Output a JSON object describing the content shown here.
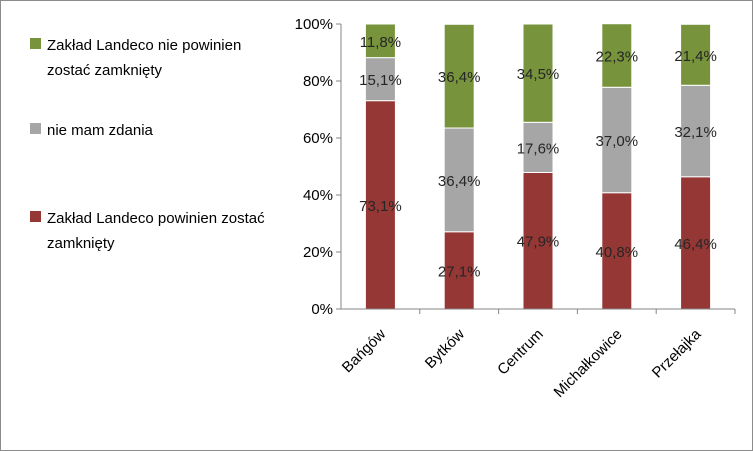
{
  "chart_data": {
    "type": "bar",
    "stacked": true,
    "percent_stacked": true,
    "categories": [
      "Bańgów",
      "Bytków",
      "Centrum",
      "Michałkowice",
      "Przełajka"
    ],
    "series": [
      {
        "name": "Zakład Landeco powinien zostać zamknięty",
        "color": "#953735",
        "values": [
          73.1,
          27.1,
          47.9,
          40.8,
          46.4
        ],
        "labels": [
          "73,1%",
          "27,1%",
          "47,9%",
          "40,8%",
          "46,4%"
        ]
      },
      {
        "name": "nie mam zdania",
        "color": "#a6a6a6",
        "values": [
          15.1,
          36.4,
          17.6,
          37.0,
          32.1
        ],
        "labels": [
          "15,1%",
          "36,4%",
          "17,6%",
          "37,0%",
          "32,1%"
        ]
      },
      {
        "name": "Zakład Landeco nie powinien zostać zamknięty",
        "color": "#77933c",
        "values": [
          11.8,
          36.4,
          34.5,
          22.3,
          21.4
        ],
        "labels": [
          "11,8%",
          "36,4%",
          "34,5%",
          "22,3%",
          "21,4%"
        ]
      }
    ],
    "y_ticks": [
      "0%",
      "20%",
      "40%",
      "60%",
      "80%",
      "100%"
    ],
    "ylim": [
      0,
      100
    ],
    "legend_position": "left",
    "grid": false
  },
  "legend": {
    "items": [
      {
        "label": "Zakład Landeco nie powinien zostać zamknięty",
        "color": "#77933c"
      },
      {
        "label": "nie mam zdania",
        "color": "#a6a6a6"
      },
      {
        "label": "Zakład Landeco powinien zostać zamknięty",
        "color": "#953735"
      }
    ]
  }
}
